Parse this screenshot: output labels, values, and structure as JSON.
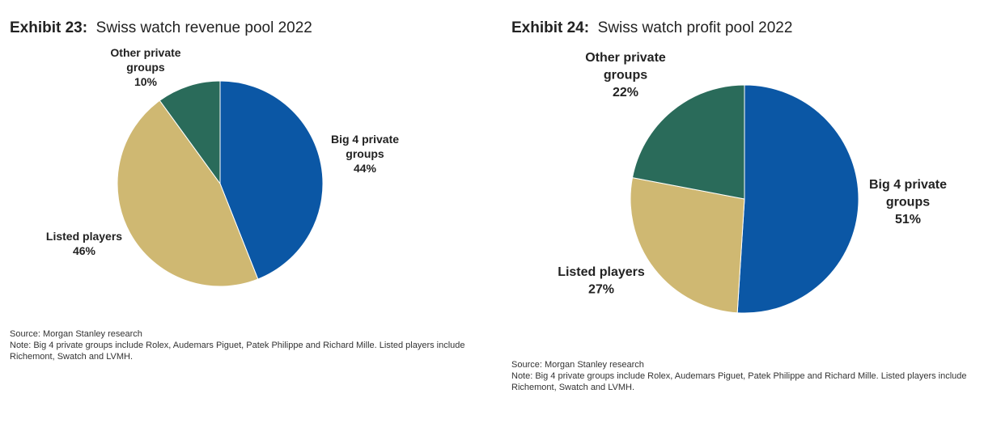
{
  "colors": {
    "big4": "#0b57a5",
    "listed": "#cfb872",
    "other": "#2a6b5a"
  },
  "chart_data": [
    {
      "type": "pie",
      "exhibit_label": "Exhibit 23:",
      "title": "Swiss watch revenue pool 2022",
      "slices": [
        {
          "key": "big4",
          "label_lines": [
            "Big 4 private",
            "groups"
          ],
          "pct_text": "44%",
          "value": 44
        },
        {
          "key": "listed",
          "label_lines": [
            "Listed players"
          ],
          "pct_text": "46%",
          "value": 46
        },
        {
          "key": "other",
          "label_lines": [
            "Other private",
            "groups"
          ],
          "pct_text": "10%",
          "value": 10
        }
      ],
      "source": "Source: Morgan Stanley research",
      "note": "Note: Big 4 private groups include Rolex, Audemars Piguet, Patek Philippe and Richard Mille. Listed players include Richemont, Swatch and LVMH."
    },
    {
      "type": "pie",
      "exhibit_label": "Exhibit 24:",
      "title": "Swiss watch profit pool 2022",
      "slices": [
        {
          "key": "big4",
          "label_lines": [
            "Big 4 private",
            "groups"
          ],
          "pct_text": "51%",
          "value": 51
        },
        {
          "key": "listed",
          "label_lines": [
            "Listed players"
          ],
          "pct_text": "27%",
          "value": 27
        },
        {
          "key": "other",
          "label_lines": [
            "Other private",
            "groups"
          ],
          "pct_text": "22%",
          "value": 22
        }
      ],
      "source": "Source: Morgan Stanley research",
      "note": "Note: Big 4 private groups include Rolex, Audemars Piguet, Patek Philippe and Richard Mille. Listed players include Richemont, Swatch and LVMH."
    }
  ]
}
